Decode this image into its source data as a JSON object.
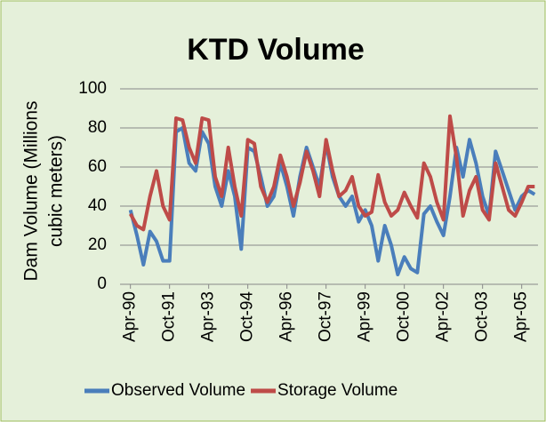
{
  "chart_data": {
    "type": "line",
    "title": "KTD  Volume",
    "ylabel_lines": [
      "Dam Volume (Millions",
      "cubic meters)"
    ],
    "categories": [
      "Apr-90",
      null,
      null,
      null,
      null,
      null,
      "Oct-91",
      null,
      null,
      null,
      null,
      null,
      "Apr-93",
      null,
      null,
      null,
      null,
      null,
      "Oct-94",
      null,
      null,
      null,
      null,
      null,
      "Apr-96",
      null,
      null,
      null,
      null,
      null,
      "Oct-97",
      null,
      null,
      null,
      null,
      null,
      "Apr-99",
      null,
      null,
      null,
      null,
      null,
      "Oct-00",
      null,
      null,
      null,
      null,
      null,
      "Apr-02",
      null,
      null,
      null,
      null,
      null,
      "Oct-03",
      null,
      null,
      null,
      null,
      null,
      "Apr-05",
      null,
      null
    ],
    "series": [
      {
        "name": "Observed Volume",
        "color": "#4a7ebb",
        "values": [
          38,
          25,
          10,
          27,
          22,
          12,
          12,
          78,
          80,
          62,
          58,
          78,
          72,
          50,
          40,
          58,
          45,
          18,
          70,
          68,
          55,
          40,
          45,
          62,
          50,
          35,
          55,
          70,
          60,
          50,
          72,
          55,
          45,
          40,
          45,
          32,
          38,
          30,
          12,
          30,
          20,
          5,
          14,
          8,
          6,
          36,
          40,
          32,
          25,
          45,
          70,
          55,
          74,
          62,
          45,
          35,
          68,
          58,
          48,
          38,
          45,
          48,
          46
        ]
      },
      {
        "name": "Storage Volume",
        "color": "#be4b48",
        "values": [
          36,
          30,
          28,
          45,
          58,
          40,
          33,
          85,
          84,
          70,
          62,
          85,
          84,
          55,
          45,
          70,
          50,
          35,
          74,
          72,
          50,
          42,
          50,
          66,
          55,
          40,
          52,
          68,
          58,
          45,
          74,
          58,
          45,
          48,
          55,
          40,
          35,
          37,
          56,
          42,
          35,
          38,
          47,
          40,
          34,
          62,
          55,
          42,
          33,
          86,
          65,
          35,
          48,
          55,
          38,
          33,
          62,
          50,
          38,
          35,
          42,
          50,
          50
        ]
      }
    ],
    "ylim": [
      0,
      100
    ],
    "yticks": [
      0,
      20,
      40,
      60,
      80,
      100
    ],
    "grid": true,
    "legend": "bottom"
  }
}
